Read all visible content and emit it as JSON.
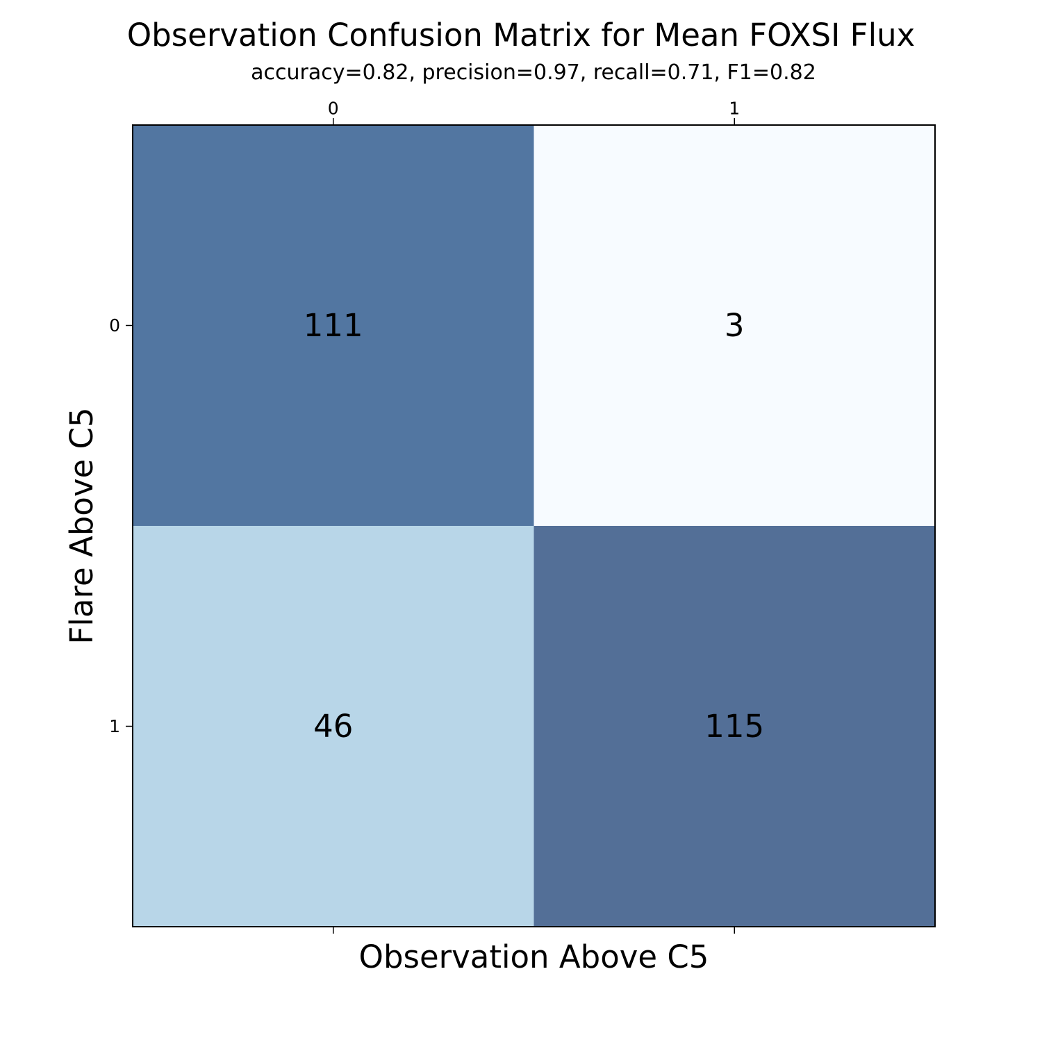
{
  "chart_data": {
    "type": "heatmap",
    "title": "Observation Confusion Matrix for Mean FOXSI Flux",
    "subtitle": "accuracy=0.82, precision=0.97, recall=0.71, F1=0.82",
    "xlabel": "Observation Above C5",
    "ylabel": "Flare Above C5",
    "x_ticks": [
      "0",
      "1"
    ],
    "y_ticks": [
      "0",
      "1"
    ],
    "matrix": [
      [
        111,
        3
      ],
      [
        46,
        115
      ]
    ],
    "cell_colors": [
      [
        "#5276A1",
        "#F7FBFF"
      ],
      [
        "#B8D6E8",
        "#536F97"
      ]
    ],
    "colormap": "Blues"
  }
}
